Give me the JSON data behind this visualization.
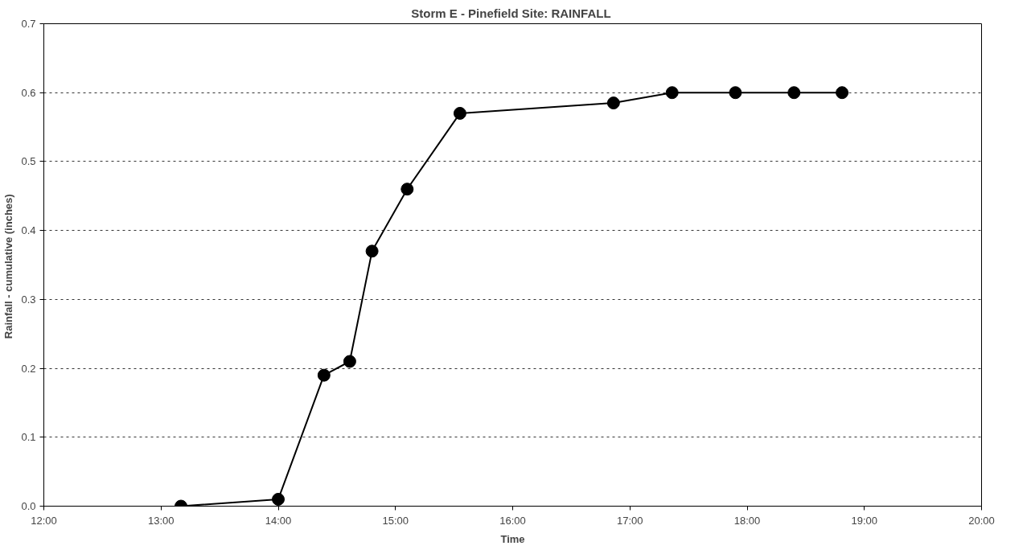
{
  "chart_data": {
    "type": "line",
    "title": "Storm E - Pinefield Site:  RAINFALL",
    "xlabel": "Time",
    "ylabel": "Rainfall - cumulative  (inches)",
    "x": [
      13.17,
      14.0,
      14.39,
      14.61,
      14.8,
      15.1,
      15.55,
      16.86,
      17.36,
      17.9,
      18.4,
      18.81
    ],
    "series": [
      {
        "color": "#000000",
        "values": [
          0.0,
          0.01,
          0.19,
          0.21,
          0.37,
          0.46,
          0.57,
          0.585,
          0.6,
          0.6,
          0.6,
          0.6
        ]
      }
    ],
    "xlim": [
      12,
      20
    ],
    "xticks": [
      {
        "value": 12,
        "label": "12:00"
      },
      {
        "value": 13,
        "label": "13:00"
      },
      {
        "value": 14,
        "label": "14:00"
      },
      {
        "value": 15,
        "label": "15:00"
      },
      {
        "value": 16,
        "label": "16:00"
      },
      {
        "value": 17,
        "label": "17:00"
      },
      {
        "value": 18,
        "label": "18:00"
      },
      {
        "value": 19,
        "label": "19:00"
      },
      {
        "value": 20,
        "label": "20:00"
      }
    ],
    "ylim": [
      0,
      0.7
    ],
    "yticks": [
      {
        "value": 0,
        "label": "0.0"
      },
      {
        "value": 0.1,
        "label": "0.1"
      },
      {
        "value": 0.2,
        "label": "0.2"
      },
      {
        "value": 0.3,
        "label": "0.3"
      },
      {
        "value": 0.4,
        "label": "0.4"
      },
      {
        "value": 0.5,
        "label": "0.5"
      },
      {
        "value": 0.6,
        "label": "0.6"
      },
      {
        "value": 0.7,
        "label": "0.7"
      }
    ],
    "grid": "y",
    "marker": "circle",
    "line_style": "solid"
  }
}
